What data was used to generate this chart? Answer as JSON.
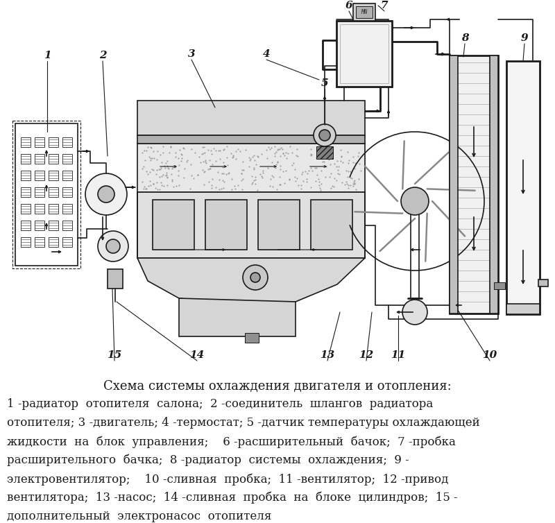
{
  "background_color": "#ffffff",
  "title": "Схема системы охлаждения двигателя и отопления:",
  "caption_lines": [
    "1 -радиатор  отопителя  салона;  2 -соединитель  шлангов  радиатора",
    "отопителя; 3 -двигатель; 4 -термостат; 5 -датчик температуры охлаждающей",
    "жидкости  на  блок  управления;    6 -расширительный  бачок;  7 -пробка",
    "расширительного  бачка;  8 -радиатор  системы  охлаждения;  9 -",
    "электровентилятор;    10 -сливная  пробка;  11 -вентилятор;  12 -привод",
    "вентилятора;  13 -насос;  14 -сливная  пробка  на  блоке  цилиндров;  15 -",
    "дополнительный  электронасос  отопителя"
  ],
  "fig_width": 8.0,
  "fig_height": 7.54,
  "dpi": 100,
  "title_fontsize": 13,
  "caption_fontsize": 12,
  "font_family": "DejaVu Serif"
}
